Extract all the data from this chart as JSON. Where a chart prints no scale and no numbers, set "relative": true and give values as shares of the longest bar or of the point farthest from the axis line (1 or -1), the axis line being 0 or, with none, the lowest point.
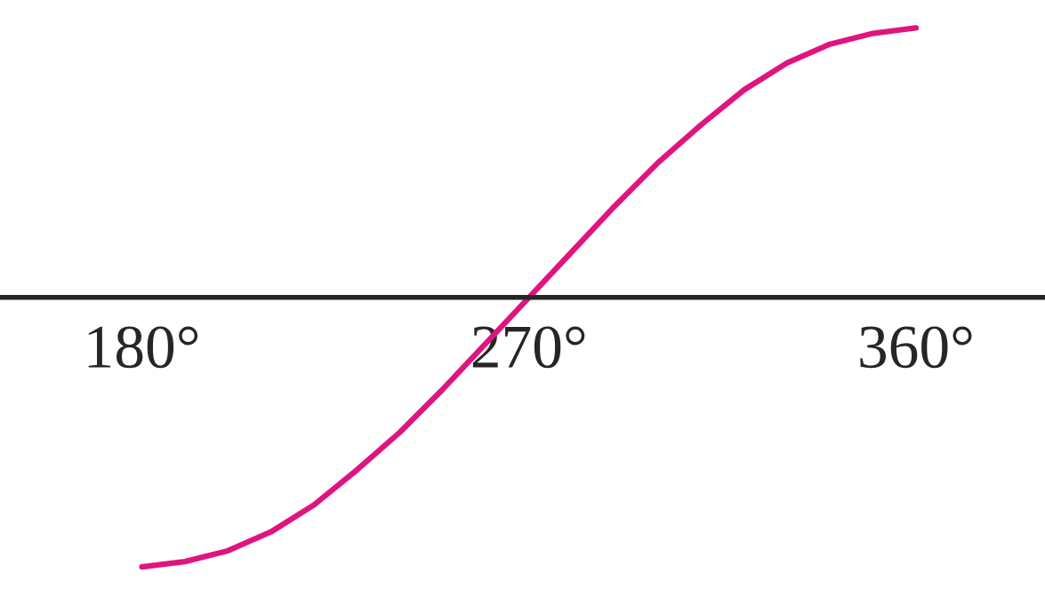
{
  "chart_data": {
    "type": "line",
    "relative": true,
    "x": [
      180,
      190,
      200,
      210,
      220,
      230,
      240,
      250,
      260,
      270,
      280,
      290,
      300,
      310,
      320,
      330,
      340,
      350,
      360
    ],
    "series": [
      {
        "color": "#e0147f",
        "values": [
          -1,
          -0.98,
          -0.94,
          -0.87,
          -0.77,
          -0.64,
          -0.5,
          -0.34,
          -0.17,
          0,
          0.17,
          0.34,
          0.5,
          0.64,
          0.77,
          0.87,
          0.94,
          0.98,
          1
        ]
      }
    ],
    "xlim": [
      147,
      390
    ],
    "xticks": [
      {
        "value": 180,
        "label": "180°"
      },
      {
        "value": 270,
        "label": "270°"
      },
      {
        "value": 360,
        "label": "360°"
      }
    ],
    "tick_labels": "x",
    "grid": false
  }
}
